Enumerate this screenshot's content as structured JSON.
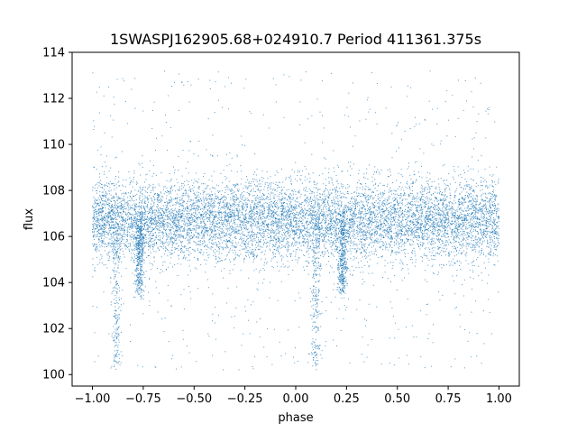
{
  "chart_data": {
    "type": "scatter",
    "title": "1SWASPJ162905.68+024910.7 Period 411361.375s",
    "xlabel": "phase",
    "ylabel": "flux",
    "xlim": [
      -1.1,
      1.1
    ],
    "ylim": [
      99.5,
      114
    ],
    "x_ticks": [
      -1.0,
      -0.75,
      -0.5,
      -0.25,
      0.0,
      0.25,
      0.5,
      0.75,
      1.0
    ],
    "x_tick_labels": [
      "−1.00",
      "−0.75",
      "−0.50",
      "−0.25",
      "0.00",
      "0.25",
      "0.50",
      "0.75",
      "1.00"
    ],
    "y_ticks": [
      100,
      102,
      104,
      106,
      108,
      110,
      112,
      114
    ],
    "y_tick_labels": [
      "100",
      "102",
      "104",
      "106",
      "108",
      "110",
      "112",
      "114"
    ],
    "grid": false,
    "legend": "none",
    "point_color": "#1f77b4",
    "series": [
      {
        "phase_range": [
          -1.0,
          1.0
        ],
        "flux_clip": [
          100.2,
          113.2
        ],
        "baseline_flux": 106.7,
        "baseline_spread": 0.85,
        "dips": [
          {
            "phase": -0.77,
            "depth_flux": 103.6
          },
          {
            "phase": -0.88,
            "depth_flux": 100.2
          },
          {
            "phase": 0.1,
            "depth_flux": 100.2
          },
          {
            "phase": 0.23,
            "depth_flux": 103.6
          }
        ]
      }
    ]
  }
}
